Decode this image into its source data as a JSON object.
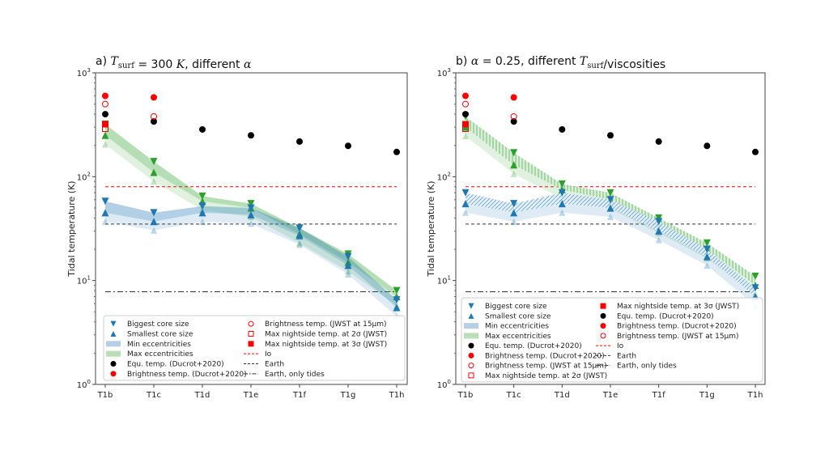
{
  "chart_data": [
    {
      "type": "scatter",
      "title_parts": [
        {
          "t": "a) "
        },
        {
          "t": "T",
          "i": true
        },
        {
          "t": "surf",
          "sub": true
        },
        {
          "t": " = 300 ",
          "i": false
        },
        {
          "t": "K",
          "i": true
        },
        {
          "t": ", different "
        },
        {
          "t": "α",
          "i": true
        }
      ],
      "ylabel": "Tidal temperature (K)",
      "yscale": "log",
      "ylim": [
        1,
        1000
      ],
      "yticks": [
        1,
        10,
        100,
        1000
      ],
      "categories": [
        "T1b",
        "T1c",
        "T1d",
        "T1e",
        "T1f",
        "T1g",
        "T1h"
      ],
      "hatched": false,
      "series": [
        {
          "name": "Max eccentricities",
          "kind": "band",
          "color": "#2ca02c",
          "biggest": [
            320,
            140,
            65,
            55,
            32,
            18,
            8
          ],
          "smallest": [
            250,
            110,
            58,
            50,
            28,
            15,
            7
          ]
        },
        {
          "name": "Min eccentricities",
          "kind": "band",
          "color": "#1f77b4",
          "biggest": [
            58,
            45,
            52,
            50,
            32,
            17,
            6.5
          ],
          "smallest": [
            45,
            37,
            45,
            43,
            27,
            14,
            5.5
          ]
        },
        {
          "name": "Equ. temp. (Ducrot+2020)",
          "kind": "points",
          "marker": "dot",
          "color": "#000000",
          "values": [
            400,
            340,
            285,
            250,
            218,
            198,
            173
          ]
        },
        {
          "name": "Brightness temp. (Ducrot+2020)",
          "kind": "points",
          "marker": "dot",
          "color": "#ff0000",
          "values": [
            600,
            580,
            null,
            null,
            null,
            null,
            null
          ]
        },
        {
          "name": "Brightness temp. (JWST at 15μm)",
          "kind": "points",
          "marker": "circle-open",
          "color": "#ff0000",
          "values": [
            500,
            380,
            null,
            null,
            null,
            null,
            null
          ]
        },
        {
          "name": "Max nightside temp. at 2σ (JWST)",
          "kind": "points",
          "marker": "square-open",
          "color": "#ff0000",
          "values": [
            290,
            null,
            null,
            null,
            null,
            null,
            null
          ]
        },
        {
          "name": "Max nightside temp. at 3σ (JWST)",
          "kind": "points",
          "marker": "square",
          "color": "#ff0000",
          "values": [
            320,
            null,
            null,
            null,
            null,
            null,
            null
          ]
        },
        {
          "name": "Io",
          "kind": "hline",
          "style": "dashed",
          "color": "#ff0000",
          "value": 80
        },
        {
          "name": "Earth",
          "kind": "hline",
          "style": "dashed",
          "color": "#333333",
          "value": 35
        },
        {
          "name": "Earth, only tides",
          "kind": "hline",
          "style": "dashdot",
          "color": "#333333",
          "value": 7.8
        }
      ],
      "legend": {
        "placement": "bottom",
        "columns": [
          [
            {
              "m": "tri-down",
              "c": "#1f77b4",
              "label": "Biggest core size"
            },
            {
              "m": "tri-up",
              "c": "#1f77b4",
              "label": "Smallest core size"
            },
            {
              "m": "patch",
              "c": "#b6cfe6",
              "label": "Min eccentricities"
            },
            {
              "m": "patch",
              "c": "#b9deb8",
              "label": "Max eccentricities"
            },
            {
              "m": "dot",
              "c": "#000000",
              "label": "Equ. temp. (Ducrot+2020)"
            },
            {
              "m": "dot",
              "c": "#ff0000",
              "label": "Brightness temp. (Ducrot+2020)"
            }
          ],
          [
            {
              "m": "circle-open",
              "c": "#ff0000",
              "label": "Brightness temp. (JWST at 15μm)"
            },
            {
              "m": "square-open",
              "c": "#ff0000",
              "label": "Max nightside temp. at 2σ (JWST)"
            },
            {
              "m": "square",
              "c": "#ff0000",
              "label": "Max nightside temp. at 3σ (JWST)"
            },
            {
              "m": "dashed",
              "c": "#ff0000",
              "label": "Io"
            },
            {
              "m": "dashed",
              "c": "#333333",
              "label": "Earth"
            },
            {
              "m": "dashdot",
              "c": "#333333",
              "label": "Earth, only tides"
            }
          ]
        ]
      }
    },
    {
      "type": "scatter",
      "title_parts": [
        {
          "t": "b) "
        },
        {
          "t": "α",
          "i": true
        },
        {
          "t": " = 0.25, different "
        },
        {
          "t": "T",
          "i": true
        },
        {
          "t": "surf",
          "sub": true
        },
        {
          "t": "/viscosities"
        }
      ],
      "ylabel": "Tidal temperature (K)",
      "yscale": "log",
      "ylim": [
        1,
        1000
      ],
      "yticks": [
        1,
        10,
        100,
        1000
      ],
      "categories": [
        "T1b",
        "T1c",
        "T1d",
        "T1e",
        "T1f",
        "T1g",
        "T1h"
      ],
      "hatched": true,
      "series": [
        {
          "name": "Max eccentricities",
          "kind": "band",
          "color": "#2ca02c",
          "biggest": [
            380,
            170,
            85,
            70,
            40,
            23,
            11
          ],
          "smallest": [
            300,
            130,
            75,
            60,
            35,
            20,
            9
          ]
        },
        {
          "name": "Min eccentricities",
          "kind": "band",
          "color": "#1f77b4",
          "biggest": [
            70,
            55,
            70,
            60,
            37,
            20,
            8.5
          ],
          "smallest": [
            55,
            45,
            55,
            50,
            30,
            17,
            7
          ]
        },
        {
          "name": "Equ. temp. (Ducrot+2020)",
          "kind": "points",
          "marker": "dot",
          "color": "#000000",
          "values": [
            400,
            340,
            285,
            250,
            218,
            198,
            173
          ]
        },
        {
          "name": "Brightness temp. (Ducrot+2020)",
          "kind": "points",
          "marker": "dot",
          "color": "#ff0000",
          "values": [
            600,
            580,
            null,
            null,
            null,
            null,
            null
          ]
        },
        {
          "name": "Brightness temp. (JWST at 15μm)",
          "kind": "points",
          "marker": "circle-open",
          "color": "#ff0000",
          "values": [
            500,
            380,
            null,
            null,
            null,
            null,
            null
          ]
        },
        {
          "name": "Max nightside temp. at 2σ (JWST)",
          "kind": "points",
          "marker": "square-open",
          "color": "#ff0000",
          "values": [
            290,
            null,
            null,
            null,
            null,
            null,
            null
          ]
        },
        {
          "name": "Max nightside temp. at 3σ (JWST)",
          "kind": "points",
          "marker": "square",
          "color": "#ff0000",
          "values": [
            320,
            null,
            null,
            null,
            null,
            null,
            null
          ]
        },
        {
          "name": "Io",
          "kind": "hline",
          "style": "dashed",
          "color": "#ff0000",
          "value": 80
        },
        {
          "name": "Earth",
          "kind": "hline",
          "style": "dashed",
          "color": "#333333",
          "value": 35
        },
        {
          "name": "Earth, only tides",
          "kind": "hline",
          "style": "dashdot",
          "color": "#333333",
          "value": 7.8
        }
      ],
      "legend": {
        "placement": "bottom",
        "columns": [
          [
            {
              "m": "tri-down",
              "c": "#1f77b4",
              "label": "Biggest core size"
            },
            {
              "m": "tri-up",
              "c": "#1f77b4",
              "label": "Smallest core size"
            },
            {
              "m": "patch",
              "c": "#b6cfe6",
              "label": "Min eccentricities"
            },
            {
              "m": "patch",
              "c": "#b9deb8",
              "label": "Max eccentricities"
            },
            {
              "m": "dot",
              "c": "#000000",
              "label": "Equ. temp. (Ducrot+2020)"
            },
            {
              "m": "dot",
              "c": "#ff0000",
              "label": "Brightness temp. (Ducrot+2020)"
            },
            {
              "m": "circle-open",
              "c": "#ff0000",
              "label": "Brightness temp. (JWST at 15μm)"
            },
            {
              "m": "square-open",
              "c": "#ff0000",
              "label": "Max nightside temp. at 2σ (JWST)"
            }
          ],
          [
            {
              "m": "square",
              "c": "#ff0000",
              "label": "Max nightside temp. at 3σ (JWST)"
            },
            {
              "m": "dot",
              "c": "#000000",
              "label": "Equ. temp. (Ducrot+2020)"
            },
            {
              "m": "dot",
              "c": "#ff0000",
              "label": "Brightness temp. (Ducrot+2020)"
            },
            {
              "m": "circle-open",
              "c": "#ff0000",
              "label": "Brightness temp. (JWST at 15μm)"
            },
            {
              "m": "dashed",
              "c": "#ff0000",
              "label": "Io"
            },
            {
              "m": "dashed",
              "c": "#333333",
              "label": "Earth"
            },
            {
              "m": "dashdot",
              "c": "#333333",
              "label": "Earth, only tides"
            }
          ]
        ]
      }
    }
  ]
}
